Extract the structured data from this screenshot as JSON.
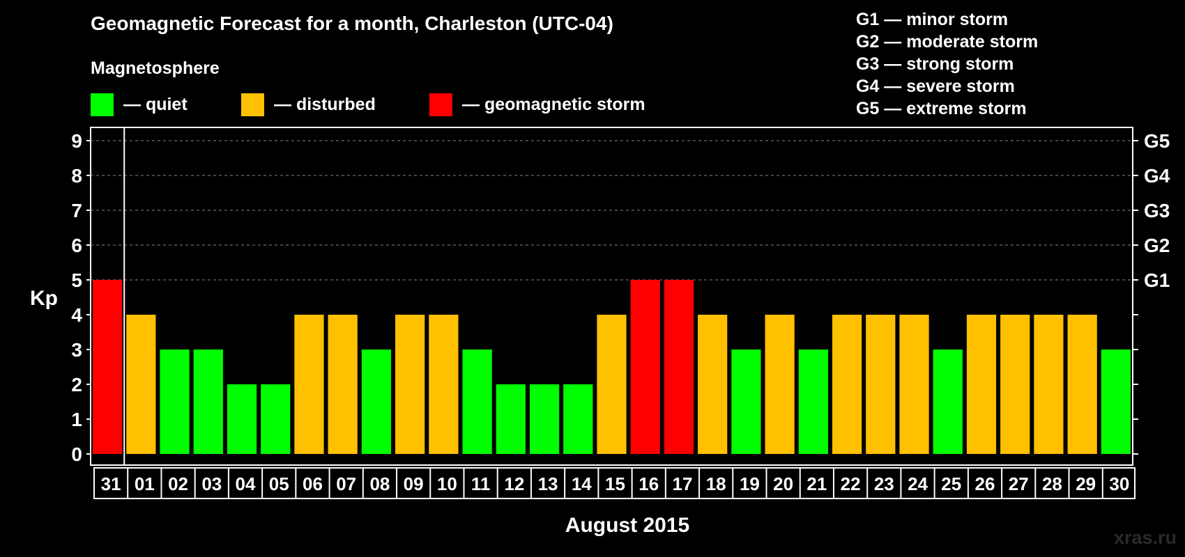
{
  "header": {
    "title": "Geomagnetic Forecast for a month, Charleston (UTC-04)",
    "subtitle": "Magnetosphere"
  },
  "legend": [
    {
      "label": "— quiet",
      "color": "#00ff00"
    },
    {
      "label": "— disturbed",
      "color": "#ffc000"
    },
    {
      "label": "— geomagnetic storm",
      "color": "#ff0000"
    }
  ],
  "gscale": [
    "G1 — minor storm",
    "G2 — moderate storm",
    "G3 — strong storm",
    "G4 — severe storm",
    "G5 — extreme storm"
  ],
  "watermark": "xras.ru",
  "chart_data": {
    "type": "bar",
    "title": "Geomagnetic Forecast for a month, Charleston (UTC-04)",
    "ylabel": "Kp",
    "xlabel": "August 2015",
    "ylim": [
      0,
      9
    ],
    "yticks": [
      "0",
      "1",
      "2",
      "3",
      "4",
      "5",
      "6",
      "7",
      "8",
      "9"
    ],
    "right_ticks": [
      {
        "value": 5,
        "label": "G1"
      },
      {
        "value": 6,
        "label": "G2"
      },
      {
        "value": 7,
        "label": "G3"
      },
      {
        "value": 8,
        "label": "G4"
      },
      {
        "value": 9,
        "label": "G5"
      }
    ],
    "grid": "dashed horizontal at 5-9",
    "categories": [
      "31",
      "01",
      "02",
      "03",
      "04",
      "05",
      "06",
      "07",
      "08",
      "09",
      "10",
      "11",
      "12",
      "13",
      "14",
      "15",
      "16",
      "17",
      "18",
      "19",
      "20",
      "21",
      "22",
      "23",
      "24",
      "25",
      "26",
      "27",
      "28",
      "29",
      "30"
    ],
    "values": [
      5,
      4,
      3,
      3,
      2,
      2,
      4,
      4,
      3,
      4,
      4,
      3,
      2,
      2,
      2,
      4,
      5,
      5,
      4,
      3,
      4,
      3,
      4,
      4,
      4,
      3,
      4,
      4,
      4,
      4,
      3
    ],
    "colors": {
      "quiet": "#00ff00",
      "disturbed": "#ffc000",
      "storm": "#ff0000"
    }
  }
}
